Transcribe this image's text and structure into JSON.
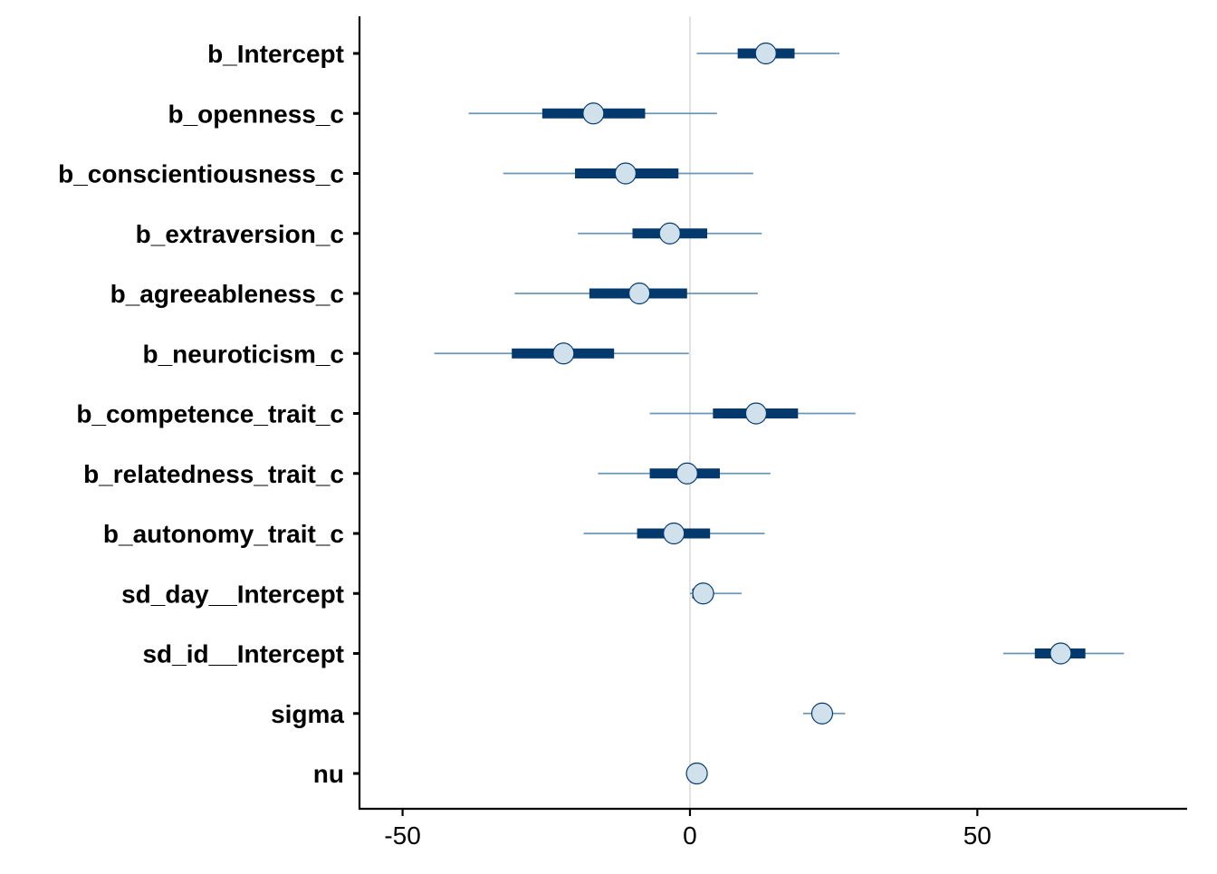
{
  "chart_data": {
    "type": "interval",
    "title": "",
    "xlabel": "",
    "ylabel": "",
    "xlim": [
      -57.5,
      86.5
    ],
    "x_ticks": [
      -50,
      0,
      50
    ],
    "x_tick_labels": [
      "-50",
      "0",
      "50"
    ],
    "zero_line": 0,
    "grid": false,
    "colors": {
      "outer_interval": "#6b97b4",
      "inner_interval": "#03396c",
      "point_fill": "#d1e1ec",
      "point_stroke": "#03396c",
      "zero_line": "#d9d9d9",
      "axis": "#000000"
    },
    "parameters": [
      {
        "label": "b_Intercept",
        "estimate": 13.2,
        "inner": [
          8.3,
          18.2
        ],
        "outer": [
          1.2,
          26.0
        ]
      },
      {
        "label": "b_openness_c",
        "estimate": -16.8,
        "inner": [
          -25.7,
          -7.8
        ],
        "outer": [
          -38.5,
          4.7
        ]
      },
      {
        "label": "b_conscientiousness_c",
        "estimate": -11.2,
        "inner": [
          -20.0,
          -2.0
        ],
        "outer": [
          -32.5,
          11.0
        ]
      },
      {
        "label": "b_extraversion_c",
        "estimate": -3.5,
        "inner": [
          -10.0,
          3.0
        ],
        "outer": [
          -19.5,
          12.5
        ]
      },
      {
        "label": "b_agreeableness_c",
        "estimate": -8.8,
        "inner": [
          -17.5,
          -0.5
        ],
        "outer": [
          -30.5,
          11.8
        ]
      },
      {
        "label": "b_neuroticism_c",
        "estimate": -22.0,
        "inner": [
          -31.0,
          -13.2
        ],
        "outer": [
          -44.5,
          -0.2
        ]
      },
      {
        "label": "b_competence_trait_c",
        "estimate": 11.5,
        "inner": [
          4.0,
          18.8
        ],
        "outer": [
          -7.0,
          28.8
        ]
      },
      {
        "label": "b_relatedness_trait_c",
        "estimate": -0.5,
        "inner": [
          -7.0,
          5.2
        ],
        "outer": [
          -16.0,
          14.0
        ]
      },
      {
        "label": "b_autonomy_trait_c",
        "estimate": -2.8,
        "inner": [
          -9.2,
          3.5
        ],
        "outer": [
          -18.5,
          13.0
        ]
      },
      {
        "label": "sd_day__Intercept",
        "estimate": 2.3,
        "inner": [
          0.4,
          3.6
        ],
        "outer": [
          0.0,
          9.0
        ]
      },
      {
        "label": "sd_id__Intercept",
        "estimate": 64.5,
        "inner": [
          60.0,
          68.8
        ],
        "outer": [
          54.5,
          75.5
        ]
      },
      {
        "label": "sigma",
        "estimate": 23.0,
        "inner": [
          21.5,
          24.5
        ],
        "outer": [
          19.7,
          27.0
        ]
      },
      {
        "label": "nu",
        "estimate": 1.2,
        "inner": [
          1.0,
          1.5
        ],
        "outer": [
          1.0,
          2.0
        ]
      }
    ]
  }
}
